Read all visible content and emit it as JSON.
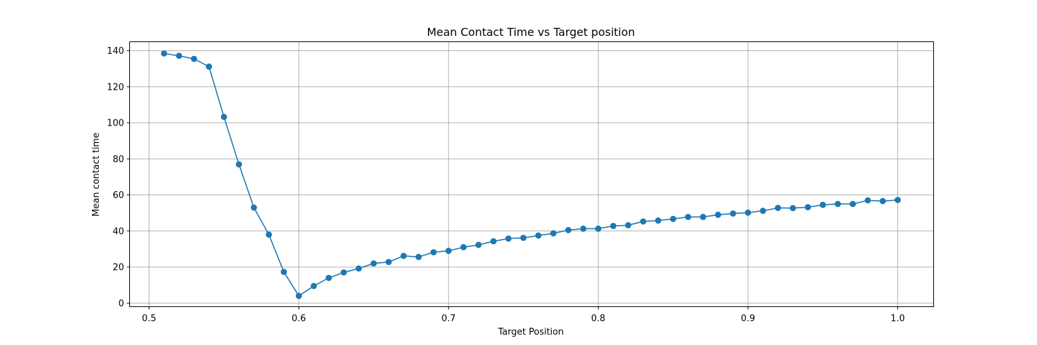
{
  "chart_data": {
    "type": "line",
    "title": "Mean Contact Time vs Target position",
    "xlabel": "Target Position",
    "ylabel": "Mean contact time",
    "xlim": [
      0.487,
      1.024
    ],
    "ylim": [
      -2,
      145
    ],
    "xticks": [
      0.5,
      0.6,
      0.7,
      0.8,
      0.9,
      1.0
    ],
    "xtick_labels": [
      "0.5",
      "0.6",
      "0.7",
      "0.8",
      "0.9",
      "1.0"
    ],
    "yticks": [
      0,
      20,
      40,
      60,
      80,
      100,
      120,
      140
    ],
    "ytick_labels": [
      "0",
      "20",
      "40",
      "60",
      "80",
      "100",
      "120",
      "140"
    ],
    "grid": true,
    "series_color": "#1f77b4",
    "x": [
      0.51,
      0.52,
      0.53,
      0.54,
      0.55,
      0.56,
      0.57,
      0.58,
      0.59,
      0.6,
      0.61,
      0.62,
      0.63,
      0.64,
      0.65,
      0.66,
      0.67,
      0.68,
      0.69,
      0.7,
      0.71,
      0.72,
      0.73,
      0.74,
      0.75,
      0.76,
      0.77,
      0.78,
      0.79,
      0.8,
      0.81,
      0.82,
      0.83,
      0.84,
      0.85,
      0.86,
      0.87,
      0.88,
      0.89,
      0.9,
      0.91,
      0.92,
      0.93,
      0.94,
      0.95,
      0.96,
      0.97,
      0.98,
      0.99,
      1.0
    ],
    "y": [
      138.5,
      137.2,
      135.5,
      131.2,
      103.3,
      77.0,
      53.0,
      38.0,
      17.3,
      4.0,
      9.5,
      14.0,
      17.0,
      19.2,
      22.0,
      22.8,
      26.2,
      25.6,
      28.2,
      29.0,
      31.0,
      32.3,
      34.3,
      35.8,
      36.2,
      37.5,
      38.7,
      40.5,
      41.3,
      41.3,
      42.8,
      43.2,
      45.3,
      45.8,
      46.7,
      47.8,
      47.8,
      49.0,
      49.7,
      50.2,
      51.2,
      52.8,
      52.7,
      53.2,
      54.5,
      55.0,
      55.0,
      57.0,
      56.6,
      57.2
    ]
  }
}
